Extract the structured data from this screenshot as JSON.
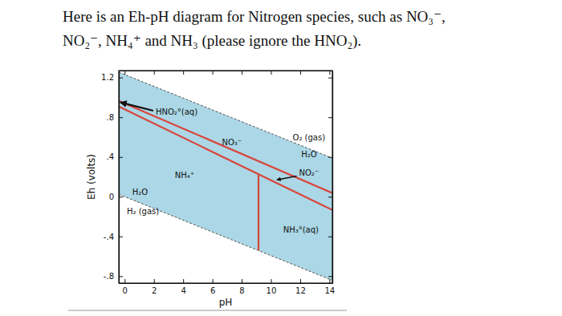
{
  "chart_data": {
    "type": "line",
    "title": [
      "Here is an Eh-pH diagram for Nitrogen species, such as NO₃⁻,",
      "NO₂⁻, NH₄⁺ and NH₃ (please ignore the HNO₂)."
    ],
    "x_label": "pH",
    "y_label": "Eh (volts)",
    "xlim": [
      -0.4,
      14.2
    ],
    "ylim": [
      -0.87,
      1.27
    ],
    "xticks": [
      0,
      2,
      4,
      6,
      8,
      10,
      12,
      14
    ],
    "yticks": [
      {
        "value": -0.8,
        "label": "-.8"
      },
      {
        "value": -0.4,
        "label": "-.4"
      },
      0,
      {
        "value": 0.4,
        "label": ".4"
      },
      {
        "value": 0.8,
        "label": ".8"
      },
      1.2
    ],
    "grid": false,
    "series": [
      {
        "type": "band",
        "color": "#abd7e6",
        "line_style": "dashed",
        "x": [
          -0.4,
          14.2
        ],
        "values": [
          1.254,
          0.388
        ],
        "lower": [
          0.024,
          -0.842
        ]
      },
      {
        "type": "line",
        "color": "#d9453b",
        "line_style": "solid",
        "x": [
          -0.4,
          14.2
        ],
        "values": [
          0.965,
          0.037
        ]
      },
      {
        "type": "line",
        "color": "#d9453b",
        "line_style": "solid",
        "x": [
          -0.4,
          14.2
        ],
        "values": [
          0.909,
          -0.134
        ]
      },
      {
        "type": "line",
        "color": "#d9453b",
        "line_style": "solid",
        "x": [
          9.15,
          9.15
        ],
        "values": [
          0.226,
          -0.54
        ]
      }
    ],
    "annotations": [
      {
        "text": "HNO₂°(aq)",
        "x": 3.55,
        "y": 0.85,
        "arrow_x": -0.3,
        "arrow_y": 0.95
      },
      {
        "text": "NO₃⁻",
        "x": 7.33,
        "y": 0.54
      },
      {
        "text": "NH₄⁺",
        "x": 4.1,
        "y": 0.215
      },
      {
        "text": "O₂ (gas)",
        "x": 12.6,
        "y": 0.59
      },
      {
        "text": "H₂O",
        "x": 12.6,
        "y": 0.42
      },
      {
        "text": "NO₂⁻",
        "x": 12.6,
        "y": 0.24,
        "arrow_x": 10.4,
        "arrow_y": 0.17
      },
      {
        "text": "NH₃°(aq)",
        "x": 12.05,
        "y": -0.34
      },
      {
        "text": "H₂O",
        "x": 1.05,
        "y": 0.04
      },
      {
        "text": "H₂ (gas)",
        "x": 1.25,
        "y": -0.155
      }
    ]
  }
}
